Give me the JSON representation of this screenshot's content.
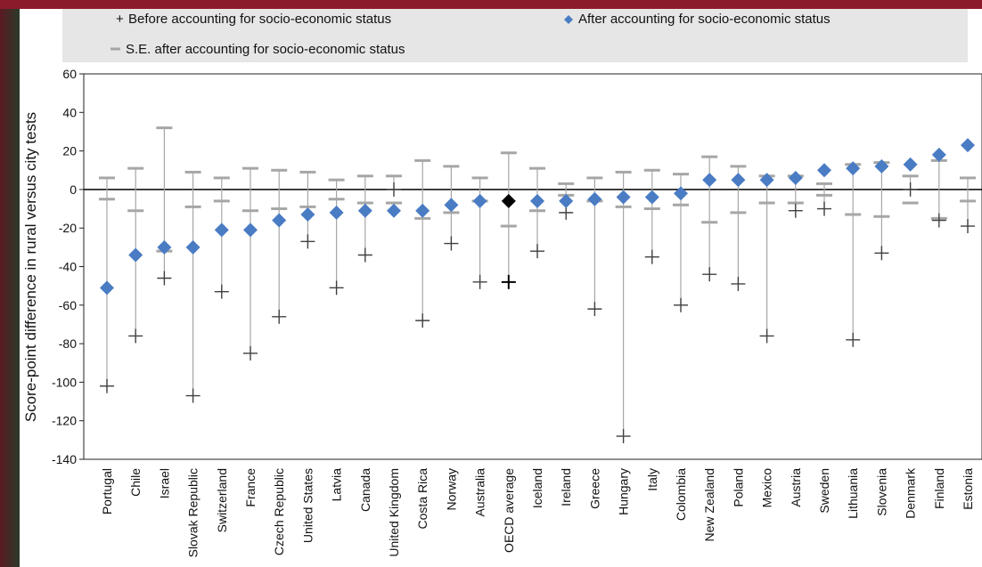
{
  "chart_data": {
    "type": "scatter",
    "ylabel": "Score-point difference in rural versus city tests",
    "ylim": [
      -140,
      60
    ],
    "yticks": [
      60,
      40,
      20,
      0,
      -20,
      -40,
      -60,
      -80,
      -100,
      -120,
      -140
    ],
    "legend": {
      "before": "Before accounting for socio-economic status",
      "after": "After accounting for socio-economic status",
      "se": "S.E. after accounting for socio-economic status"
    },
    "colors": {
      "after": "#4a7cc4",
      "oecd": "#000000",
      "se": "#a6a6a6",
      "before": "#404040"
    },
    "categories": [
      "Portugal",
      "Chile",
      "Israel",
      "Slovak Republic",
      "Switzerland",
      "France",
      "Czech Republic",
      "United States",
      "Latvia",
      "Canada",
      "United Kingdom",
      "Costa Rica",
      "Norway",
      "Australia",
      "OECD average",
      "Iceland",
      "Ireland",
      "Greece",
      "Hungary",
      "Italy",
      "Colombia",
      "New Zealand",
      "Poland",
      "Mexico",
      "Austria",
      "Sweden",
      "Lithuania",
      "Slovenia",
      "Denmark",
      "Finland",
      "Estonia"
    ],
    "after": [
      -51,
      -34,
      -30,
      -30,
      -21,
      -21,
      -16,
      -13,
      -12,
      -11,
      -11,
      -11,
      -8,
      -6,
      -6,
      -6,
      -6,
      -5,
      -4,
      -4,
      -2,
      5,
      5,
      5,
      6,
      10,
      11,
      12,
      13,
      18,
      23
    ],
    "before": [
      -102,
      -76,
      -46,
      -107,
      -53,
      -85,
      -66,
      -27,
      -51,
      -34,
      0,
      -68,
      -28,
      -48,
      -48,
      -32,
      -12,
      -62,
      -128,
      -35,
      -60,
      -44,
      -49,
      -76,
      -11,
      -10,
      -78,
      -33,
      0,
      -16,
      -19
    ],
    "se_upper": [
      6,
      11,
      32,
      9,
      6,
      11,
      10,
      9,
      5,
      7,
      7,
      15,
      12,
      6,
      19,
      11,
      3,
      6,
      9,
      10,
      8,
      17,
      12,
      7,
      7,
      3,
      13,
      14,
      7,
      15,
      6
    ],
    "se_lower": [
      -5,
      -11,
      -32,
      -9,
      -6,
      -11,
      -10,
      -9,
      -5,
      -7,
      -7,
      -15,
      -12,
      -6,
      -19,
      -11,
      -3,
      -6,
      -9,
      -10,
      -8,
      -17,
      -12,
      -7,
      -7,
      -3,
      -13,
      -14,
      -7,
      -15,
      -6
    ]
  }
}
